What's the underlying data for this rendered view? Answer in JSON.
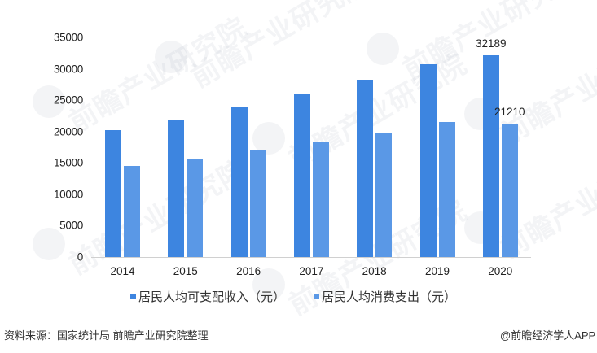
{
  "chart_data": {
    "type": "bar",
    "title": "",
    "xlabel": "",
    "ylabel": "",
    "categories": [
      "2014",
      "2015",
      "2016",
      "2017",
      "2018",
      "2019",
      "2020"
    ],
    "series": [
      {
        "name": "居民人均可支配收入（元）",
        "color": "#3d85e0",
        "values": [
          20167,
          21966,
          23821,
          25974,
          28228,
          30733,
          32189
        ]
      },
      {
        "name": "居民人均消费支出（元）",
        "color": "#5a98e6",
        "values": [
          14491,
          15712,
          17111,
          18322,
          19853,
          21559,
          21210
        ]
      }
    ],
    "yticks": [
      "0",
      "5000",
      "10000",
      "15000",
      "20000",
      "25000",
      "30000",
      "35000"
    ],
    "ylim": [
      0,
      35000
    ],
    "grid": false,
    "legend_position": "bottom",
    "annotations": [
      {
        "series": 0,
        "category": "2020",
        "text": "32189"
      },
      {
        "series": 1,
        "category": "2020",
        "text": "21210"
      }
    ]
  },
  "legend": {
    "items": [
      {
        "label": "居民人均可支配收入（元）",
        "color": "#3d85e0"
      },
      {
        "label": "居民人均消费支出（元）",
        "color": "#5a98e6"
      }
    ]
  },
  "footer": {
    "source": "资料来源：国家统计局 前瞻产业研究院整理",
    "credit": "@前瞻经济学人APP"
  },
  "watermark": {
    "text": "前瞻产业研究院"
  }
}
